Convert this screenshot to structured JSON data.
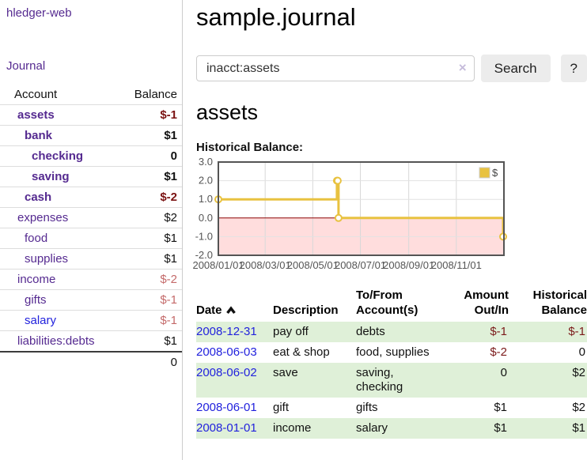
{
  "app": {
    "title": "hledger-web",
    "nav_journal": "Journal"
  },
  "sidebar": {
    "accounts_table": {
      "account_header": "Account",
      "balance_header": "Balance",
      "rows": [
        {
          "name": "assets",
          "balance": "$-1",
          "indent": 0,
          "in_filter": true
        },
        {
          "name": "bank",
          "balance": "$1",
          "indent": 1,
          "in_filter": true
        },
        {
          "name": "checking",
          "balance": "0",
          "indent": 2,
          "in_filter": true
        },
        {
          "name": "saving",
          "balance": "$1",
          "indent": 2,
          "in_filter": true
        },
        {
          "name": "cash",
          "balance": "$-2",
          "indent": 1,
          "in_filter": true
        },
        {
          "name": "expenses",
          "balance": "$2",
          "indent": 0,
          "in_filter": false
        },
        {
          "name": "food",
          "balance": "$1",
          "indent": 1,
          "in_filter": false
        },
        {
          "name": "supplies",
          "balance": "$1",
          "indent": 1,
          "in_filter": false
        },
        {
          "name": "income",
          "balance": "$-2",
          "indent": 0,
          "in_filter": false
        },
        {
          "name": "gifts",
          "balance": "$-1",
          "indent": 1,
          "in_filter": false
        },
        {
          "name": "salary",
          "balance": "$-1",
          "indent": 1,
          "in_filter": false,
          "link_style": "blue"
        },
        {
          "name": "liabilities:debts",
          "balance": "$1",
          "indent": 0,
          "in_filter": false
        }
      ],
      "total": "0"
    }
  },
  "main": {
    "title": "sample.journal",
    "search": {
      "value": "inacct:assets",
      "clear_glyph": "×",
      "button_label": "Search",
      "help_label": "?"
    },
    "account_heading": "assets",
    "chart_title": "Historical Balance:",
    "register": {
      "headers": {
        "date": "Date",
        "description": "Description",
        "accounts1": "To/From",
        "accounts2": "Account(s)",
        "amount1": "Amount",
        "amount2": "Out/In",
        "balance1": "Historical",
        "balance2": "Balance"
      },
      "rows": [
        {
          "date": "2008-12-31",
          "description": "pay off",
          "accounts": [
            "debts"
          ],
          "amount": "$-1",
          "balance": "$-1"
        },
        {
          "date": "2008-06-03",
          "description": "eat & shop",
          "accounts": [
            "food, supplies"
          ],
          "amount": "$-2",
          "balance": "0"
        },
        {
          "date": "2008-06-02",
          "description": "save",
          "accounts": [
            "saving,",
            "checking"
          ],
          "amount": "0",
          "balance": "$2"
        },
        {
          "date": "2008-06-01",
          "description": "gift",
          "accounts": [
            "gifts"
          ],
          "amount": "$1",
          "balance": "$2"
        },
        {
          "date": "2008-01-01",
          "description": "income",
          "accounts": [
            "salary"
          ],
          "amount": "$1",
          "balance": "$1"
        }
      ]
    }
  },
  "chart_data": {
    "type": "line",
    "title": "Historical Balance",
    "step": true,
    "series": [
      {
        "name": "$",
        "color": "#e8c240",
        "points": [
          [
            "2008-01-01",
            1
          ],
          [
            "2008-06-01",
            2
          ],
          [
            "2008-06-02",
            2
          ],
          [
            "2008-06-03",
            0
          ],
          [
            "2008-12-31",
            -1
          ]
        ]
      }
    ],
    "x_ticks": [
      "2008/01/01",
      "2008/03/01",
      "2008/05/01",
      "2008/07/01",
      "2008/09/01",
      "2008/11/01"
    ],
    "y_ticks": [
      "3.0",
      "2.0",
      "1.0",
      "0.0",
      "-1.0",
      "-2.0"
    ],
    "ylim": [
      -2,
      3
    ],
    "x_domain_days": [
      0,
      366
    ],
    "grid": true,
    "negative_region": true,
    "legend": {
      "label": "$",
      "position": "top-right"
    }
  },
  "colors": {
    "link_purple": "#552a90",
    "link_blue": "#2222dd",
    "negative_strong": "#7b1212",
    "negative_light": "#c46a6a",
    "register_negative": "#7b1a1a",
    "row_green": "#dff0d8",
    "chart_line": "#e8c240",
    "negative_fill": "#ffdddd",
    "zero_line": "#8b0000",
    "chart_border": "#545454"
  }
}
